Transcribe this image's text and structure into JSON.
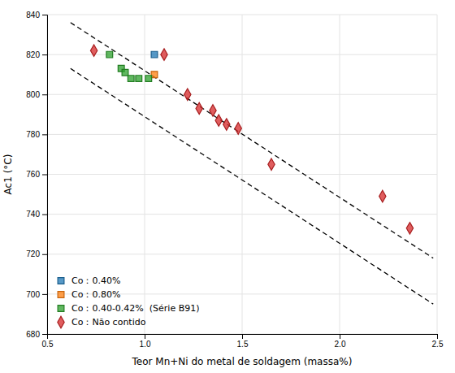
{
  "chart_data": {
    "type": "scatter",
    "xlabel": "Teor Mn+Ni do metal de soldagem (massa%)",
    "ylabel": "Ac1 (°C)",
    "xlim": [
      0.5,
      2.5
    ],
    "ylim": [
      680,
      840
    ],
    "xticks": [
      0.5,
      {
        "value": 1,
        "label": "1.0"
      },
      1.5,
      {
        "value": 2,
        "label": "2.0"
      },
      2.5
    ],
    "yticks": [
      680,
      700,
      720,
      740,
      760,
      780,
      800,
      820,
      840
    ],
    "grid": true,
    "legend": "lower left",
    "series": [
      {
        "type": "line",
        "color": "black",
        "line_style": "dashed",
        "x": [
          0.62,
          2.48
        ],
        "values": [
          836,
          718
        ]
      },
      {
        "type": "line",
        "color": "black",
        "line_style": "dashed",
        "x": [
          0.62,
          2.48
        ],
        "values": [
          813,
          695
        ]
      },
      {
        "type": "scatter",
        "name": "Co：0.40%",
        "marker": "square",
        "x": [
          1.05
        ],
        "values": [
          820
        ]
      },
      {
        "type": "scatter",
        "name": "Co：0.80%",
        "marker": "square",
        "x": [
          1.05
        ],
        "values": [
          810
        ]
      },
      {
        "type": "scatter",
        "name": "Co：0.40-0.42%  (Série B91)",
        "marker": "square",
        "x": [
          0.82,
          0.88,
          0.9,
          0.93,
          0.97,
          1.02
        ],
        "values": [
          820,
          813,
          811,
          808,
          808,
          808
        ]
      },
      {
        "type": "scatter",
        "name": "Co：Não contido",
        "marker": "diamond",
        "x": [
          0.74,
          1.1,
          1.22,
          1.28,
          1.35,
          1.38,
          1.42,
          1.48,
          1.65,
          2.22,
          2.36
        ],
        "values": [
          822,
          820,
          800,
          793,
          792,
          787,
          785,
          783,
          765,
          749,
          733
        ]
      }
    ]
  }
}
